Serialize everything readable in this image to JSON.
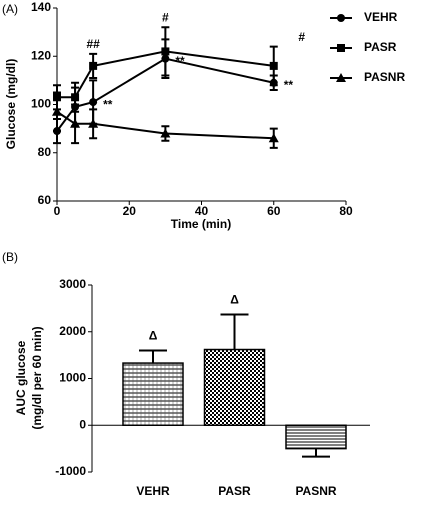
{
  "chart_data": [
    {
      "type": "line",
      "panel": "(A)",
      "xlabel": "Time (min)",
      "ylabel": "Glucose (mg/dl)",
      "x": [
        0,
        5,
        10,
        30,
        60
      ],
      "xlim": [
        0,
        80
      ],
      "xticks": [
        0,
        20,
        40,
        60,
        80
      ],
      "ylim": [
        60,
        140
      ],
      "yticks": [
        60,
        80,
        100,
        120,
        140
      ],
      "series": [
        {
          "name": "VEHR",
          "color": "#000000",
          "marker": "circle",
          "values": [
            89,
            99,
            101,
            119,
            109
          ],
          "errors": [
            5,
            8,
            9,
            8,
            3
          ],
          "notes": [
            null,
            null,
            "**",
            "**",
            "**"
          ]
        },
        {
          "name": "PASR",
          "color": "#000000",
          "marker": "square",
          "values": [
            103,
            103,
            116,
            122,
            116
          ],
          "errors": [
            5,
            6,
            5,
            10,
            8
          ],
          "notes": [
            null,
            null,
            "##",
            "#",
            "#"
          ]
        },
        {
          "name": "PASNR",
          "color": "#000000",
          "marker": "triangle",
          "values": [
            97,
            92,
            92,
            88,
            86
          ],
          "errors": [
            8,
            8,
            6,
            3,
            4
          ],
          "notes": [
            null,
            null,
            null,
            null,
            null
          ]
        }
      ]
    },
    {
      "type": "bar",
      "panel": "(B)",
      "ylabel": [
        "AUC glucose",
        "(mg/dl per 60 min)"
      ],
      "categories": [
        "VEHR",
        "PASR",
        "PASNR"
      ],
      "values": [
        1330,
        1620,
        -500
      ],
      "errors": [
        270,
        750,
        170
      ],
      "notes": [
        "Δ",
        "Δ",
        null
      ],
      "ylim": [
        -1000,
        3000
      ],
      "yticks": [
        -1000,
        0,
        1000,
        2000,
        3000
      ]
    }
  ]
}
